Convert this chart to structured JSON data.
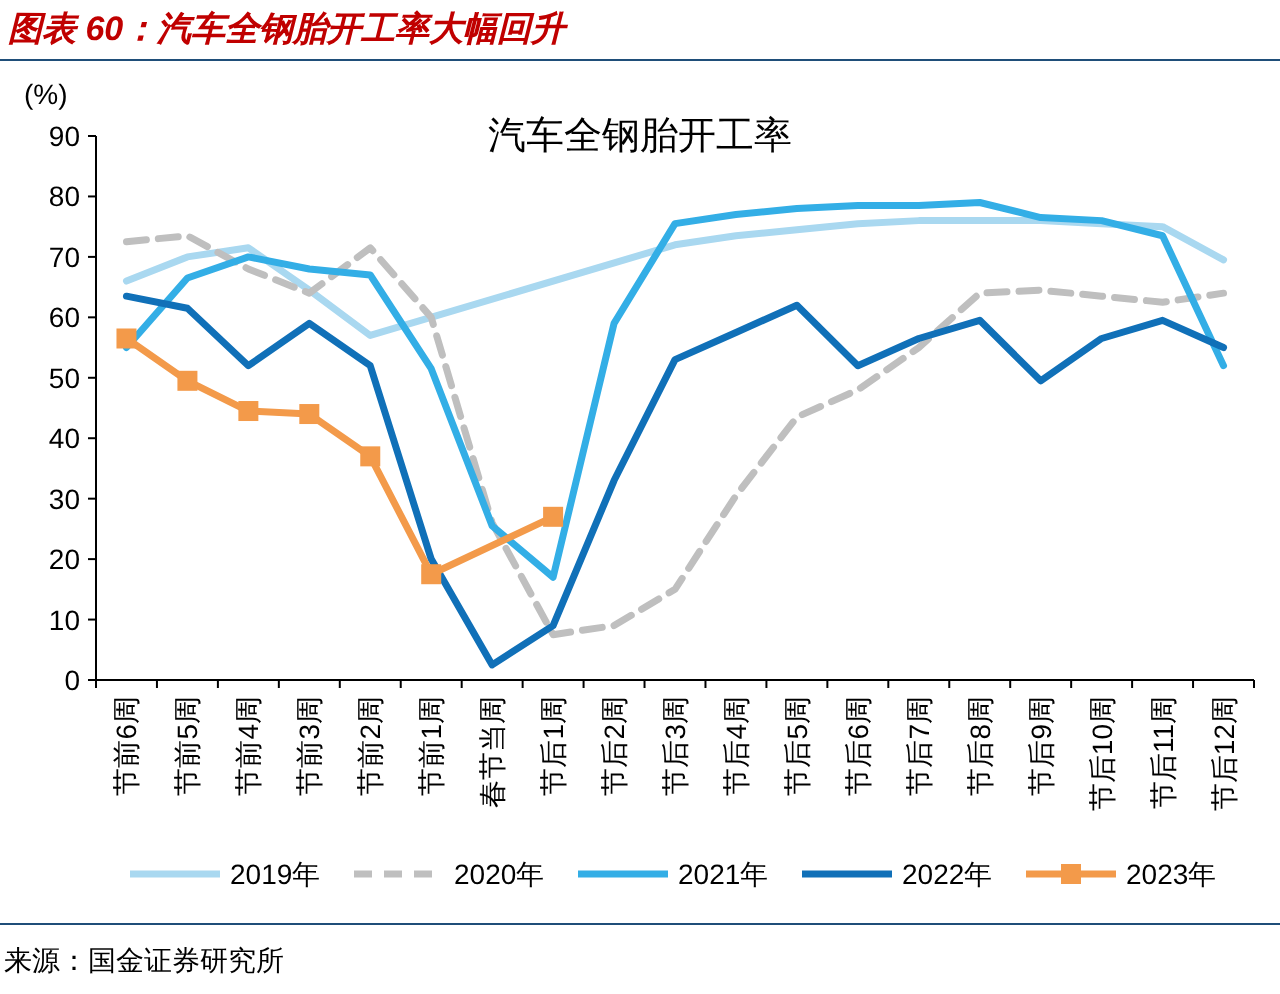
{
  "chart_data": {
    "type": "line",
    "title": "图表 60：汽车全钢胎开工率大幅回升",
    "subtitle": "汽车全钢胎开工率",
    "ylabel": "(%)",
    "categories": [
      "节前6周",
      "节前5周",
      "节前4周",
      "节前3周",
      "节前2周",
      "节前1周",
      "春节当周",
      "节后1周",
      "节后2周",
      "节后3周",
      "节后4周",
      "节后5周",
      "节后6周",
      "节后7周",
      "节后8周",
      "节后9周",
      "节后10周",
      "节后11周",
      "节后12周"
    ],
    "series": [
      {
        "name": "2019年",
        "color": "#a9d8f0",
        "line_style": "solid",
        "marker": "none",
        "values": [
          66,
          70,
          71.5,
          64.5,
          57,
          null,
          null,
          null,
          null,
          72,
          73.5,
          74.5,
          75.5,
          76,
          76,
          76,
          75.5,
          75,
          69.5
        ]
      },
      {
        "name": "2020年",
        "color": "#bfbfbf",
        "line_style": "dashed",
        "marker": "none",
        "values": [
          72.5,
          73.5,
          68,
          64,
          71.5,
          60,
          26,
          7.5,
          9,
          15,
          30.5,
          43.5,
          48,
          55,
          64,
          64.5,
          63.5,
          62.5,
          64
        ]
      },
      {
        "name": "2021年",
        "color": "#33aee6",
        "line_style": "solid",
        "marker": "none",
        "values": [
          55,
          66.5,
          70,
          68,
          67,
          51.5,
          25.5,
          17,
          59,
          75.5,
          77,
          78,
          78.5,
          78.5,
          79,
          76.5,
          76,
          73.5,
          52
        ]
      },
      {
        "name": "2022年",
        "color": "#1070b8",
        "line_style": "solid",
        "marker": "none",
        "values": [
          63.5,
          61.5,
          52,
          59,
          52,
          20,
          2.5,
          9,
          33,
          53,
          57.5,
          62,
          52,
          56.5,
          59.5,
          49.5,
          56.5,
          59.5,
          55
        ]
      },
      {
        "name": "2023年",
        "color": "#f39a4a",
        "line_style": "solid",
        "marker": "square",
        "values": [
          56.5,
          49.5,
          44.5,
          44,
          37,
          17.5,
          null,
          27,
          null,
          null,
          null,
          null,
          null,
          null,
          null,
          null,
          null,
          null,
          null
        ]
      }
    ],
    "ylim": [
      0,
      90
    ],
    "yticks": [
      0,
      10,
      20,
      30,
      40,
      50,
      60,
      70,
      80,
      90
    ],
    "grid": false,
    "legend": "bottom",
    "annotations": [
      "来源：国金证券研究所"
    ]
  }
}
